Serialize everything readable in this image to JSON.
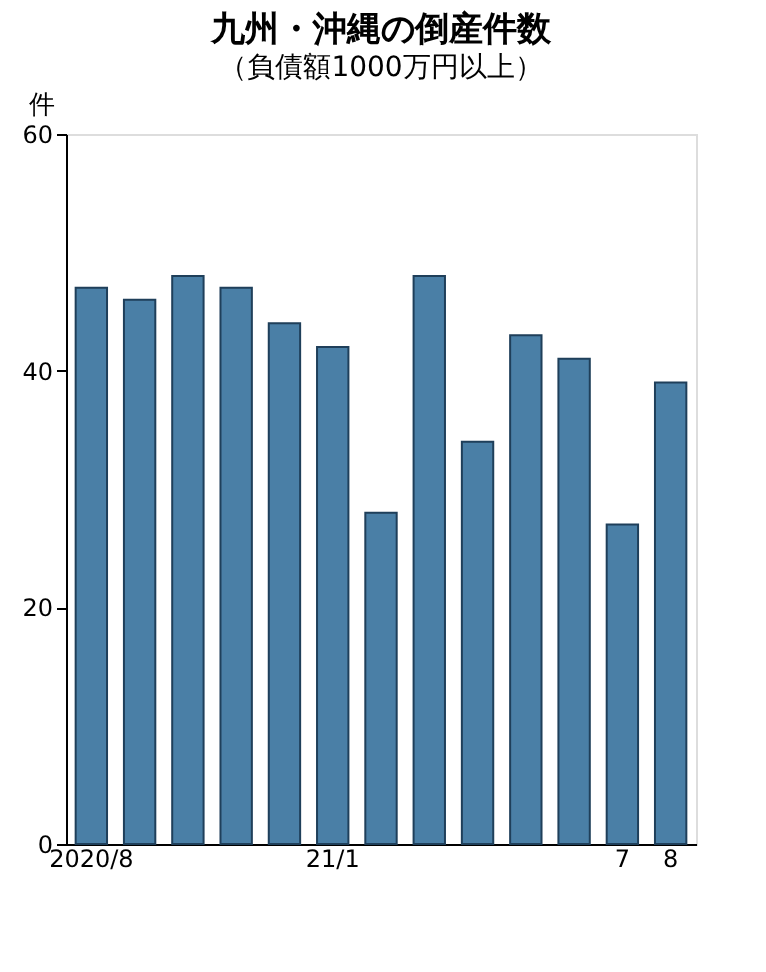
{
  "chart_data": {
    "type": "bar",
    "title": "九州・沖縄の倒産件数",
    "subtitle": "（負債額1000万円以上）",
    "ylabel": "件",
    "categories": [
      "2020/8",
      null,
      null,
      null,
      null,
      "21/1",
      null,
      null,
      null,
      null,
      null,
      "7",
      "8"
    ],
    "values": [
      47,
      46,
      48,
      47,
      44,
      42,
      28,
      48,
      34,
      43,
      41,
      27,
      39
    ],
    "color": "#4a7fa6",
    "ylim": [
      0,
      60
    ],
    "yticks": [
      0,
      20,
      40,
      60
    ],
    "grid": false
  }
}
